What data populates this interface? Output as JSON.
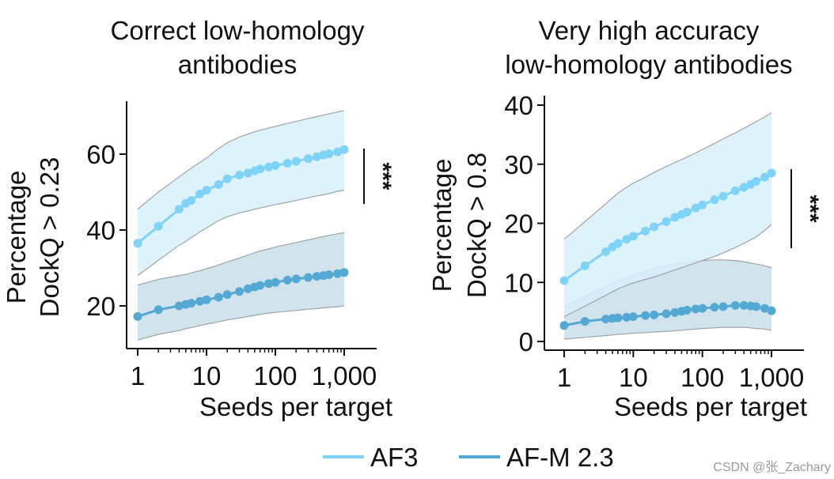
{
  "chart_data": [
    {
      "type": "line",
      "title_lines": [
        "Correct low-homology",
        "antibodies"
      ],
      "xlabel": "Seeds per target",
      "ylabel_lines": [
        "Percentage",
        "DockQ > 0.23"
      ],
      "xscale": "log",
      "xlim": [
        1,
        1000
      ],
      "ylim": [
        10,
        73
      ],
      "xticks": [
        1,
        10,
        100,
        1000
      ],
      "xtick_labels": [
        "1",
        "10",
        "100",
        "1,000"
      ],
      "yticks": [
        20,
        40,
        60
      ],
      "ytick_labels": [
        "20",
        "40",
        "60"
      ],
      "significance": "***",
      "x": [
        1,
        2,
        4,
        5,
        6,
        8,
        10,
        15,
        20,
        30,
        40,
        50,
        60,
        80,
        100,
        150,
        200,
        300,
        400,
        500,
        600,
        800,
        1000
      ],
      "series": [
        {
          "name": "AF3",
          "color": "#7fd3f7",
          "values": [
            36.5,
            41,
            45.5,
            47,
            47.8,
            49.5,
            50.5,
            52,
            53.5,
            54.5,
            55,
            55.6,
            56.1,
            56.6,
            57,
            57.6,
            58.1,
            58.8,
            59.3,
            59.8,
            60.1,
            60.6,
            61.2
          ],
          "band_lower": [
            28,
            32,
            36,
            37,
            38,
            39.5,
            40.5,
            42.5,
            43.5,
            44.5,
            45,
            45.5,
            45.8,
            46.3,
            46.7,
            47.3,
            47.8,
            48.5,
            49,
            49.3,
            49.6,
            50.2,
            50.5
          ],
          "band_upper": [
            45.5,
            50,
            54,
            55.3,
            56.3,
            57.8,
            59,
            61.5,
            63,
            64.5,
            65.3,
            65.9,
            66.3,
            66.9,
            67.3,
            68.1,
            68.6,
            69.4,
            69.9,
            70.3,
            70.6,
            71.1,
            71.5
          ]
        },
        {
          "name": "AF-M 2.3",
          "color": "#53a8d4",
          "values": [
            17.2,
            19,
            20,
            20.4,
            20.7,
            21.2,
            21.6,
            22.3,
            23,
            23.8,
            24.5,
            25,
            25.4,
            25.9,
            26.2,
            26.8,
            27.1,
            27.5,
            27.8,
            28,
            28.2,
            28.5,
            28.8
          ],
          "band_lower": [
            11,
            12.5,
            13.5,
            14,
            14.3,
            14.8,
            15.2,
            15.8,
            16.3,
            16.8,
            17.2,
            17.5,
            17.8,
            18.1,
            18.3,
            18.6,
            18.8,
            19.1,
            19.3,
            19.5,
            19.6,
            19.8,
            20
          ],
          "band_upper": [
            25.5,
            27,
            28,
            28.3,
            28.7,
            29.3,
            29.8,
            30.8,
            31.6,
            32.6,
            33.4,
            34,
            34.5,
            35,
            35.5,
            36.2,
            36.7,
            37.4,
            37.9,
            38.3,
            38.6,
            39,
            39.3
          ]
        }
      ]
    },
    {
      "type": "line",
      "title_lines": [
        "Very high accuracy",
        "low-homology antibodies"
      ],
      "xlabel": "Seeds per target",
      "ylabel_lines": [
        "Percentage",
        "DockQ > 0.8"
      ],
      "xscale": "log",
      "xlim": [
        1,
        1000
      ],
      "ylim": [
        -1.5,
        41
      ],
      "xticks": [
        1,
        10,
        100,
        1000
      ],
      "xtick_labels": [
        "1",
        "10",
        "100",
        "1,000"
      ],
      "yticks": [
        0,
        10,
        20,
        30,
        40
      ],
      "ytick_labels": [
        "0",
        "10",
        "20",
        "30",
        "40"
      ],
      "significance": "***",
      "x": [
        1,
        2,
        4,
        5,
        6,
        8,
        10,
        15,
        20,
        30,
        40,
        50,
        60,
        80,
        100,
        150,
        200,
        300,
        400,
        500,
        600,
        800,
        1000
      ],
      "series": [
        {
          "name": "AF3",
          "color": "#7fd3f7",
          "values": [
            10.3,
            12.8,
            15.2,
            16,
            16.6,
            17.3,
            17.8,
            18.7,
            19.4,
            20.3,
            21,
            21.5,
            21.9,
            22.6,
            23.1,
            24,
            24.6,
            25.5,
            26.1,
            26.6,
            27.1,
            27.8,
            28.5
          ],
          "band_lower": [
            4.2,
            6,
            7.8,
            8.4,
            8.9,
            9.5,
            9.9,
            10.5,
            10.9,
            11.6,
            12.1,
            12.5,
            12.8,
            13.3,
            13.7,
            14.4,
            15,
            15.9,
            16.6,
            17.2,
            17.7,
            18.8,
            19.8
          ],
          "band_upper": [
            17.3,
            20.3,
            23.3,
            24.3,
            25.1,
            26.1,
            26.8,
            27.8,
            28.6,
            29.6,
            30.3,
            30.8,
            31.2,
            31.9,
            32.5,
            33.5,
            34.3,
            35.3,
            36.1,
            36.7,
            37.2,
            38,
            38.7
          ]
        },
        {
          "name": "AF-M 2.3",
          "color": "#53a8d4",
          "values": [
            2.7,
            3.4,
            3.8,
            3.9,
            4,
            4.1,
            4.2,
            4.4,
            4.5,
            4.7,
            4.9,
            5.1,
            5.3,
            5.5,
            5.6,
            5.8,
            5.9,
            6.1,
            6.1,
            6,
            5.9,
            5.6,
            5.2
          ],
          "band_lower": [
            0.4,
            0.7,
            1,
            1.1,
            1.2,
            1.3,
            1.4,
            1.5,
            1.6,
            1.7,
            1.8,
            1.9,
            2,
            2.1,
            2.2,
            2.3,
            2.4,
            2.4,
            2.4,
            2.3,
            2.2,
            2.1,
            1.9
          ],
          "band_upper": [
            5.8,
            7.6,
            9.3,
            9.8,
            10.2,
            10.7,
            11.1,
            11.8,
            12.3,
            12.8,
            13.1,
            13.3,
            13.4,
            13.6,
            13.7,
            13.8,
            13.8,
            13.7,
            13.5,
            13.3,
            13.1,
            12.8,
            12.5
          ]
        }
      ]
    }
  ],
  "legend": [
    {
      "label": "AF3",
      "color": "#7fd3f7"
    },
    {
      "label": "AF-M 2.3",
      "color": "#53a8d4"
    }
  ],
  "watermark": "CSDN @张_Zachary"
}
